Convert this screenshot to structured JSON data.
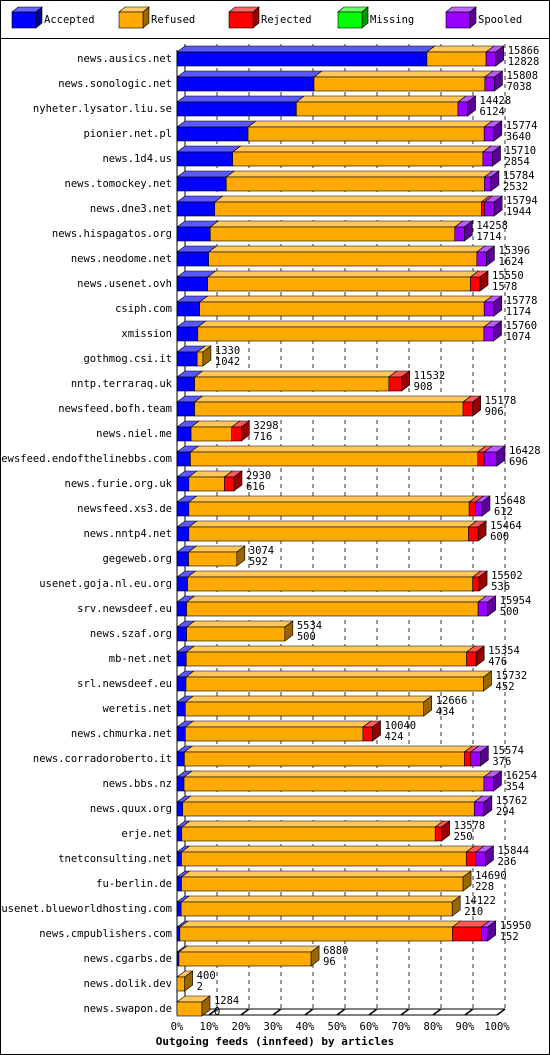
{
  "chart_data": {
    "type": "bar",
    "orientation": "horizontal",
    "x_label": "Outgoing feeds (innfeed) by articles",
    "legend": "top",
    "grid": true,
    "xlim": [
      0,
      100
    ],
    "xticks": [
      {
        "value": 0,
        "label": "0%"
      },
      {
        "value": 10,
        "label": "10%"
      },
      {
        "value": 20,
        "label": "20%"
      },
      {
        "value": 30,
        "label": "30%"
      },
      {
        "value": 40,
        "label": "40%"
      },
      {
        "value": 50,
        "label": "50%"
      },
      {
        "value": 60,
        "label": "60%"
      },
      {
        "value": 70,
        "label": "70%"
      },
      {
        "value": 80,
        "label": "80%"
      },
      {
        "value": 90,
        "label": "90%"
      },
      {
        "value": 100,
        "label": "100%"
      }
    ],
    "categories": [
      "news.ausics.net",
      "news.sonologic.net",
      "nyheter.lysator.liu.se",
      "pionier.net.pl",
      "news.1d4.us",
      "news.tomockey.net",
      "news.dne3.net",
      "news.hispagatos.org",
      "news.neodome.net",
      "news.usenet.ovh",
      "csiph.com",
      "xmission",
      "gothmog.csi.it",
      "nntp.terraraq.uk",
      "newsfeed.bofh.team",
      "news.niel.me",
      "newsfeed.endofthelinebbs.com",
      "news.furie.org.uk",
      "newsfeed.xs3.de",
      "news.nntp4.net",
      "gegeweb.org",
      "usenet.goja.nl.eu.org",
      "srv.newsdeef.eu",
      "news.szaf.org",
      "mb-net.net",
      "srl.newsdeef.eu",
      "weretis.net",
      "news.chmurka.net",
      "news.corradoroberto.it",
      "news.bbs.nz",
      "news.quux.org",
      "erje.net",
      "tnetconsulting.net",
      "fu-berlin.de",
      "usenet.blueworldhosting.com",
      "news.cmpublishers.com",
      "news.cgarbs.de",
      "news.dolik.dev",
      "news.swapon.de"
    ],
    "total_articles": [
      15866,
      15808,
      14428,
      15774,
      15710,
      15784,
      15794,
      14258,
      15396,
      15550,
      15778,
      15760,
      1330,
      11532,
      15178,
      3298,
      16428,
      2930,
      15648,
      15464,
      3074,
      15502,
      15954,
      5534,
      15354,
      15732,
      12666,
      10040,
      15574,
      16254,
      15762,
      13578,
      15844,
      14690,
      14122,
      15950,
      6880,
      400,
      1284
    ],
    "accepted_articles": [
      12828,
      7038,
      6124,
      3640,
      2854,
      2532,
      1944,
      1714,
      1624,
      1578,
      1174,
      1074,
      1042,
      908,
      906,
      716,
      696,
      616,
      612,
      600,
      592,
      536,
      500,
      500,
      476,
      452,
      434,
      424,
      376,
      354,
      294,
      250,
      236,
      228,
      210,
      152,
      96,
      2,
      0
    ],
    "series": [
      {
        "name": "Accepted",
        "color": "#0000ff",
        "values": [
          78.1,
          42.8,
          37.3,
          22.2,
          17.4,
          15.4,
          11.8,
          10.4,
          9.9,
          9.6,
          7.1,
          6.5,
          6.3,
          5.5,
          5.5,
          4.4,
          4.2,
          3.7,
          3.7,
          3.7,
          3.6,
          3.3,
          3.0,
          3.0,
          2.9,
          2.8,
          2.6,
          2.6,
          2.3,
          2.2,
          1.8,
          1.5,
          1.4,
          1.4,
          1.3,
          0.9,
          0.6,
          0.0,
          0
        ]
      },
      {
        "name": "Refused",
        "color": "#ffaa00",
        "values": [
          18.5,
          53.4,
          50.5,
          73.8,
          78.2,
          80.7,
          83.3,
          76.4,
          83.8,
          82.1,
          88.9,
          89.4,
          1.8,
          60.7,
          83.9,
          12.7,
          89.8,
          11.1,
          87.6,
          87.4,
          15.1,
          89.1,
          91.1,
          30.7,
          87.6,
          93.0,
          74.5,
          55.5,
          87.5,
          93.7,
          91.1,
          79.2,
          89.0,
          88.0,
          84.7,
          85.2,
          41.3,
          2.4,
          7.8
        ]
      },
      {
        "name": "Rejected",
        "color": "#ff0000",
        "values": [
          0,
          0,
          0,
          0,
          0,
          0,
          1,
          0,
          0,
          3,
          0,
          0,
          0,
          4,
          3,
          3,
          2,
          3,
          2,
          3,
          0,
          2,
          0,
          0,
          3,
          0,
          0,
          3,
          2,
          0,
          0,
          2,
          3,
          0,
          0,
          9,
          0,
          0,
          0
        ]
      },
      {
        "name": "Missing",
        "color": "#00ff00",
        "values": [
          0,
          0,
          0,
          0,
          0,
          0,
          0,
          0,
          0,
          0,
          0,
          0,
          0,
          0,
          0,
          0,
          0,
          0,
          0,
          0,
          0,
          0,
          0,
          0,
          0,
          0,
          0,
          0,
          0,
          0,
          0,
          0,
          0,
          0,
          0,
          0,
          0,
          0,
          0
        ]
      },
      {
        "name": "Spooled",
        "color": "#9900ff",
        "values": [
          3,
          3,
          3,
          3,
          3,
          2,
          3,
          3,
          3,
          0,
          3,
          3,
          0,
          0,
          0,
          0,
          4,
          0,
          2,
          0,
          0,
          0,
          3,
          0,
          0,
          0,
          0,
          0,
          3,
          3,
          3,
          0,
          3,
          0,
          0,
          2,
          0,
          0,
          0
        ]
      }
    ]
  }
}
